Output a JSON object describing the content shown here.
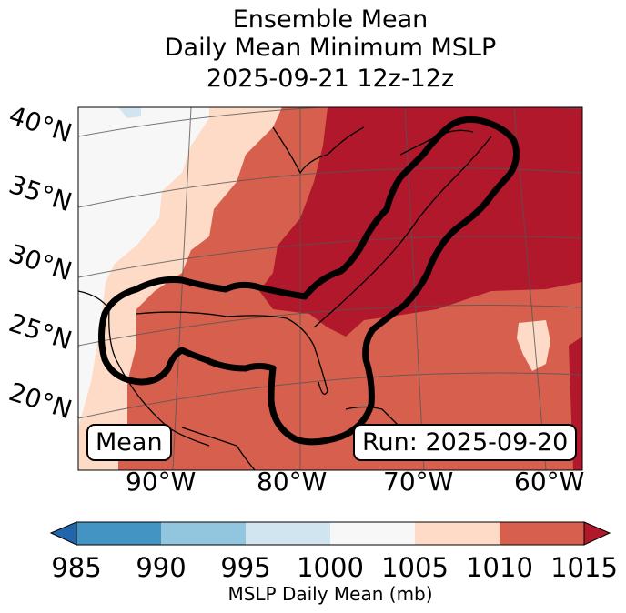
{
  "title": {
    "line1": "Ensemble Mean",
    "line2": "Daily Mean Minimum MSLP",
    "line3": "2025-09-21 12z-12z"
  },
  "map": {
    "lat_labels": [
      "40°N",
      "35°N",
      "30°N",
      "25°N",
      "20°N"
    ],
    "lon_labels": [
      "90°W",
      "80°W",
      "70°W",
      "60°W"
    ],
    "mean_label": "Mean",
    "run_label": "Run: 2025-09-20",
    "contour_description": "black contour outlining region of lowest-MSLP member spread"
  },
  "colorbar": {
    "ticks": [
      "985",
      "990",
      "995",
      "1000",
      "1005",
      "1010",
      "1015"
    ],
    "label": "MSLP Daily Mean (mb)",
    "colors": [
      "#2166ac",
      "#4393c3",
      "#92c5de",
      "#d1e5f0",
      "#f7f7f7",
      "#fddbc7",
      "#d6604d",
      "#b2182b"
    ],
    "extend_low_color": "#2166ac",
    "extend_high_color": "#b2182b"
  },
  "colors": {
    "c1000": "#f7f7f7",
    "c1005": "#fddbc7",
    "c1010": "#d6604d",
    "c1015": "#b2182b",
    "c995": "#d1e5f0"
  }
}
